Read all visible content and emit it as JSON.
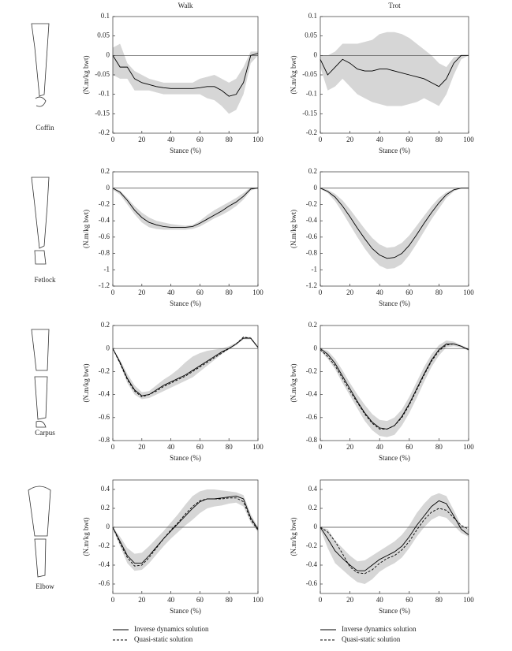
{
  "joint_labels": [
    "Coffin",
    "Fetlock",
    "Carpus",
    "Elbow"
  ],
  "chart_data": [
    {
      "type": "line",
      "title": "Walk",
      "xlabel": "Stance (%)",
      "ylabel": "(N.m/kg bwt)",
      "x": [
        0,
        5,
        10,
        15,
        20,
        25,
        30,
        35,
        40,
        45,
        50,
        55,
        60,
        65,
        70,
        75,
        80,
        85,
        90,
        95,
        100
      ],
      "xlim": [
        0,
        100
      ],
      "xticks": [
        0,
        20,
        40,
        60,
        80,
        100
      ],
      "ylim": [
        -0.2,
        0.1
      ],
      "yticks": [
        -0.2,
        -0.15,
        -0.1,
        -0.05,
        0,
        0.05,
        0.1
      ],
      "band": {
        "color": "#d6d6d6",
        "upper": [
          0.02,
          0.03,
          -0.02,
          -0.04,
          -0.05,
          -0.06,
          -0.065,
          -0.07,
          -0.07,
          -0.07,
          -0.07,
          -0.07,
          -0.06,
          -0.055,
          -0.05,
          -0.06,
          -0.07,
          -0.06,
          -0.03,
          0.01,
          0.01
        ],
        "lower": [
          -0.05,
          -0.06,
          -0.06,
          -0.09,
          -0.09,
          -0.09,
          -0.095,
          -0.1,
          -0.1,
          -0.1,
          -0.1,
          -0.1,
          -0.1,
          -0.11,
          -0.115,
          -0.13,
          -0.15,
          -0.14,
          -0.1,
          -0.02,
          0
        ]
      },
      "series": [
        {
          "color": "#000000",
          "dash": false,
          "values": [
            0,
            -0.03,
            -0.03,
            -0.06,
            -0.07,
            -0.075,
            -0.08,
            -0.083,
            -0.085,
            -0.085,
            -0.085,
            -0.085,
            -0.083,
            -0.08,
            -0.08,
            -0.09,
            -0.105,
            -0.1,
            -0.07,
            0,
            0.005
          ]
        }
      ]
    },
    {
      "type": "line",
      "title": "Trot",
      "xlabel": "Stance (%)",
      "ylabel": "(N.m/kg bwt)",
      "x": [
        0,
        5,
        10,
        15,
        20,
        25,
        30,
        35,
        40,
        45,
        50,
        55,
        60,
        65,
        70,
        75,
        80,
        85,
        90,
        95,
        100
      ],
      "xlim": [
        0,
        100
      ],
      "xticks": [
        0,
        20,
        40,
        60,
        80,
        100
      ],
      "ylim": [
        -0.2,
        0.1
      ],
      "yticks": [
        -0.2,
        -0.15,
        -0.1,
        -0.05,
        0,
        0.05,
        0.1
      ],
      "band": {
        "color": "#d6d6d6",
        "upper": [
          0,
          0,
          0.01,
          0.03,
          0.03,
          0.03,
          0.035,
          0.04,
          0.055,
          0.06,
          0.06,
          0.055,
          0.045,
          0.03,
          0.015,
          0,
          -0.02,
          -0.03,
          -0.005,
          0,
          0
        ],
        "lower": [
          -0.03,
          -0.09,
          -0.08,
          -0.06,
          -0.08,
          -0.1,
          -0.11,
          -0.12,
          -0.125,
          -0.13,
          -0.13,
          -0.13,
          -0.125,
          -0.12,
          -0.11,
          -0.12,
          -0.13,
          -0.1,
          -0.05,
          -0.01,
          0
        ]
      },
      "series": [
        {
          "color": "#000000",
          "dash": false,
          "values": [
            -0.01,
            -0.05,
            -0.03,
            -0.01,
            -0.02,
            -0.035,
            -0.04,
            -0.04,
            -0.035,
            -0.035,
            -0.04,
            -0.045,
            -0.05,
            -0.055,
            -0.06,
            -0.07,
            -0.08,
            -0.06,
            -0.02,
            0,
            0
          ]
        }
      ]
    },
    {
      "type": "line",
      "xlabel": "Stance (%)",
      "ylabel": "(N.m/kg bwt)",
      "x": [
        0,
        5,
        10,
        15,
        20,
        25,
        30,
        35,
        40,
        45,
        50,
        55,
        60,
        65,
        70,
        75,
        80,
        85,
        90,
        95,
        100
      ],
      "xlim": [
        0,
        100
      ],
      "xticks": [
        0,
        20,
        40,
        60,
        80,
        100
      ],
      "ylim": [
        -1.2,
        0.2
      ],
      "yticks": [
        -1.2,
        -1,
        -0.8,
        -0.6,
        -0.4,
        -0.2,
        0,
        0.2
      ],
      "band": {
        "color": "#d6d6d6",
        "upper": [
          0,
          -0.03,
          -0.12,
          -0.22,
          -0.3,
          -0.36,
          -0.4,
          -0.42,
          -0.44,
          -0.45,
          -0.46,
          -0.45,
          -0.4,
          -0.33,
          -0.27,
          -0.22,
          -0.17,
          -0.12,
          -0.06,
          0.01,
          0.01
        ],
        "lower": [
          -0.02,
          -0.08,
          -0.2,
          -0.32,
          -0.42,
          -0.48,
          -0.5,
          -0.51,
          -0.51,
          -0.51,
          -0.51,
          -0.5,
          -0.47,
          -0.42,
          -0.37,
          -0.33,
          -0.28,
          -0.22,
          -0.14,
          -0.03,
          0
        ]
      },
      "series": [
        {
          "color": "#000000",
          "dash": false,
          "values": [
            0,
            -0.05,
            -0.15,
            -0.27,
            -0.36,
            -0.42,
            -0.45,
            -0.47,
            -0.48,
            -0.48,
            -0.48,
            -0.47,
            -0.43,
            -0.38,
            -0.33,
            -0.28,
            -0.22,
            -0.17,
            -0.1,
            -0.01,
            0
          ]
        }
      ]
    },
    {
      "type": "line",
      "xlabel": "Stance (%)",
      "ylabel": "(N.m/kg bwt)",
      "x": [
        0,
        5,
        10,
        15,
        20,
        25,
        30,
        35,
        40,
        45,
        50,
        55,
        60,
        65,
        70,
        75,
        80,
        85,
        90,
        95,
        100
      ],
      "xlim": [
        0,
        100
      ],
      "xticks": [
        0,
        20,
        40,
        60,
        80,
        100
      ],
      "ylim": [
        -1.2,
        0.2
      ],
      "yticks": [
        -1.2,
        -1,
        -0.8,
        -0.6,
        -0.4,
        -0.2,
        0,
        0.2
      ],
      "band": {
        "color": "#d6d6d6",
        "upper": [
          0,
          -0.02,
          -0.07,
          -0.15,
          -0.26,
          -0.38,
          -0.5,
          -0.61,
          -0.69,
          -0.73,
          -0.72,
          -0.67,
          -0.58,
          -0.46,
          -0.34,
          -0.22,
          -0.12,
          -0.05,
          -0.01,
          0,
          0
        ],
        "lower": [
          -0.01,
          -0.06,
          -0.16,
          -0.3,
          -0.45,
          -0.6,
          -0.74,
          -0.86,
          -0.95,
          -0.99,
          -0.98,
          -0.93,
          -0.82,
          -0.68,
          -0.53,
          -0.38,
          -0.25,
          -0.12,
          -0.04,
          0,
          0
        ]
      },
      "series": [
        {
          "color": "#000000",
          "dash": false,
          "values": [
            0,
            -0.04,
            -0.11,
            -0.22,
            -0.35,
            -0.49,
            -0.62,
            -0.74,
            -0.82,
            -0.86,
            -0.85,
            -0.8,
            -0.7,
            -0.57,
            -0.43,
            -0.3,
            -0.18,
            -0.08,
            -0.02,
            0,
            0
          ]
        }
      ]
    },
    {
      "type": "line",
      "xlabel": "Stance (%)",
      "ylabel": "(N.m/kg bwt)",
      "x": [
        0,
        5,
        10,
        15,
        20,
        25,
        30,
        35,
        40,
        45,
        50,
        55,
        60,
        65,
        70,
        75,
        80,
        85,
        90,
        95,
        100
      ],
      "xlim": [
        0,
        100
      ],
      "xticks": [
        0,
        20,
        40,
        60,
        80,
        100
      ],
      "ylim": [
        -0.8,
        0.2
      ],
      "yticks": [
        -0.8,
        -0.6,
        -0.4,
        -0.2,
        0,
        0.2
      ],
      "band": {
        "color": "#d6d6d6",
        "upper": [
          0,
          -0.1,
          -0.22,
          -0.32,
          -0.38,
          -0.37,
          -0.32,
          -0.27,
          -0.23,
          -0.18,
          -0.12,
          -0.07,
          -0.04,
          -0.02,
          -0.01,
          0,
          0.02,
          0.05,
          0.1,
          0.1,
          0.02
        ],
        "lower": [
          -0.01,
          -0.14,
          -0.3,
          -0.4,
          -0.44,
          -0.43,
          -0.4,
          -0.37,
          -0.34,
          -0.31,
          -0.28,
          -0.25,
          -0.2,
          -0.15,
          -0.1,
          -0.05,
          -0.01,
          0.03,
          0.08,
          0.08,
          0
        ]
      },
      "series": [
        {
          "color": "#000000",
          "dash": false,
          "values": [
            0,
            -0.12,
            -0.26,
            -0.36,
            -0.41,
            -0.4,
            -0.36,
            -0.32,
            -0.29,
            -0.26,
            -0.23,
            -0.19,
            -0.15,
            -0.11,
            -0.07,
            -0.03,
            0,
            0.04,
            0.09,
            0.09,
            0.01
          ]
        },
        {
          "color": "#000000",
          "dash": true,
          "values": [
            0,
            -0.13,
            -0.27,
            -0.37,
            -0.42,
            -0.4,
            -0.37,
            -0.33,
            -0.3,
            -0.27,
            -0.24,
            -0.2,
            -0.16,
            -0.12,
            -0.08,
            -0.04,
            0,
            0.04,
            0.1,
            0.09,
            0.01
          ]
        }
      ]
    },
    {
      "type": "line",
      "xlabel": "Stance (%)",
      "ylabel": "(N.m/kg bwt)",
      "x": [
        0,
        5,
        10,
        15,
        20,
        25,
        30,
        35,
        40,
        45,
        50,
        55,
        60,
        65,
        70,
        75,
        80,
        85,
        90,
        95,
        100
      ],
      "xlim": [
        0,
        100
      ],
      "xticks": [
        0,
        20,
        40,
        60,
        80,
        100
      ],
      "ylim": [
        -0.8,
        0.2
      ],
      "yticks": [
        -0.8,
        -0.6,
        -0.4,
        -0.2,
        0,
        0.2
      ],
      "band": {
        "color": "#d6d6d6",
        "upper": [
          0,
          -0.02,
          -0.09,
          -0.19,
          -0.3,
          -0.4,
          -0.49,
          -0.57,
          -0.62,
          -0.63,
          -0.6,
          -0.53,
          -0.42,
          -0.29,
          -0.16,
          -0.05,
          0.03,
          0.07,
          0.06,
          0.03,
          0
        ],
        "lower": [
          -0.02,
          -0.09,
          -0.18,
          -0.3,
          -0.41,
          -0.52,
          -0.63,
          -0.71,
          -0.76,
          -0.77,
          -0.75,
          -0.67,
          -0.56,
          -0.43,
          -0.29,
          -0.16,
          -0.06,
          0.01,
          0.02,
          0.01,
          -0.02
        ]
      },
      "series": [
        {
          "color": "#000000",
          "dash": false,
          "values": [
            0,
            -0.05,
            -0.13,
            -0.24,
            -0.35,
            -0.46,
            -0.56,
            -0.64,
            -0.69,
            -0.7,
            -0.67,
            -0.59,
            -0.48,
            -0.35,
            -0.22,
            -0.1,
            -0.01,
            0.04,
            0.04,
            0.02,
            -0.01
          ]
        },
        {
          "color": "#000000",
          "dash": true,
          "values": [
            -0.01,
            -0.07,
            -0.15,
            -0.26,
            -0.37,
            -0.47,
            -0.57,
            -0.65,
            -0.7,
            -0.7,
            -0.67,
            -0.6,
            -0.49,
            -0.36,
            -0.23,
            -0.11,
            -0.02,
            0.03,
            0.04,
            0.02,
            -0.01
          ]
        }
      ]
    },
    {
      "type": "line",
      "xlabel": "Stance (%)",
      "ylabel": "(N.m/kg bwt)",
      "legend": "below",
      "x": [
        0,
        5,
        10,
        15,
        20,
        25,
        30,
        35,
        40,
        45,
        50,
        55,
        60,
        65,
        70,
        75,
        80,
        85,
        90,
        95,
        100
      ],
      "xlim": [
        0,
        100
      ],
      "xticks": [
        0,
        20,
        40,
        60,
        80,
        100
      ],
      "ylim": [
        -0.7,
        0.5
      ],
      "yticks": [
        -0.6,
        -0.4,
        -0.2,
        0,
        0.2,
        0.4
      ],
      "band": {
        "color": "#d6d6d6",
        "upper": [
          0,
          -0.1,
          -0.22,
          -0.28,
          -0.27,
          -0.2,
          -0.12,
          -0.04,
          0.05,
          0.14,
          0.24,
          0.33,
          0.38,
          0.4,
          0.4,
          0.39,
          0.38,
          0.37,
          0.34,
          0.14,
          0
        ],
        "lower": [
          -0.02,
          -0.2,
          -0.38,
          -0.46,
          -0.45,
          -0.38,
          -0.29,
          -0.2,
          -0.12,
          -0.05,
          0.02,
          0.08,
          0.15,
          0.2,
          0.22,
          0.23,
          0.25,
          0.26,
          0.22,
          0.05,
          -0.05
        ]
      },
      "series": [
        {
          "name": "Inverse dynamics solution",
          "color": "#000000",
          "dash": false,
          "values": [
            0,
            -0.15,
            -0.3,
            -0.38,
            -0.38,
            -0.3,
            -0.21,
            -0.12,
            -0.04,
            0.04,
            0.12,
            0.2,
            0.27,
            0.3,
            0.3,
            0.31,
            0.32,
            0.33,
            0.3,
            0.1,
            -0.02
          ]
        },
        {
          "name": "Quasi-static solution",
          "color": "#000000",
          "dash": true,
          "values": [
            0,
            -0.17,
            -0.32,
            -0.41,
            -0.4,
            -0.32,
            -0.22,
            -0.12,
            -0.03,
            0.05,
            0.14,
            0.22,
            0.28,
            0.3,
            0.3,
            0.3,
            0.31,
            0.31,
            0.27,
            0.08,
            -0.03
          ]
        }
      ]
    },
    {
      "type": "line",
      "xlabel": "Stance (%)",
      "ylabel": "(N.m/kg bwt)",
      "legend": "below",
      "x": [
        0,
        5,
        10,
        15,
        20,
        25,
        30,
        35,
        40,
        45,
        50,
        55,
        60,
        65,
        70,
        75,
        80,
        85,
        90,
        95,
        100
      ],
      "xlim": [
        0,
        100
      ],
      "xticks": [
        0,
        20,
        40,
        60,
        80,
        100
      ],
      "ylim": [
        -0.7,
        0.5
      ],
      "yticks": [
        -0.6,
        -0.4,
        -0.2,
        0,
        0.2,
        0.4
      ],
      "band": {
        "color": "#d6d6d6",
        "upper": [
          0,
          -0.02,
          -0.14,
          -0.22,
          -0.3,
          -0.36,
          -0.35,
          -0.3,
          -0.25,
          -0.2,
          -0.15,
          -0.08,
          0.02,
          0.15,
          0.25,
          0.33,
          0.36,
          0.33,
          0.18,
          0.02,
          -0.02
        ],
        "lower": [
          -0.02,
          -0.22,
          -0.38,
          -0.45,
          -0.52,
          -0.58,
          -0.6,
          -0.55,
          -0.47,
          -0.42,
          -0.38,
          -0.32,
          -0.22,
          -0.1,
          0,
          0.08,
          0.12,
          0.1,
          0.02,
          -0.06,
          -0.1
        ]
      },
      "series": [
        {
          "name": "Inverse dynamics solution",
          "color": "#000000",
          "dash": false,
          "values": [
            0,
            -0.12,
            -0.25,
            -0.33,
            -0.4,
            -0.46,
            -0.46,
            -0.4,
            -0.34,
            -0.3,
            -0.26,
            -0.2,
            -0.1,
            0.02,
            0.12,
            0.22,
            0.28,
            0.25,
            0.12,
            -0.02,
            -0.08
          ]
        },
        {
          "name": "Quasi-static solution",
          "color": "#000000",
          "dash": true,
          "values": [
            0,
            -0.05,
            -0.15,
            -0.28,
            -0.42,
            -0.48,
            -0.49,
            -0.45,
            -0.38,
            -0.33,
            -0.3,
            -0.24,
            -0.15,
            -0.03,
            0.08,
            0.16,
            0.2,
            0.18,
            0.1,
            0.02,
            -0.02
          ]
        }
      ]
    }
  ]
}
